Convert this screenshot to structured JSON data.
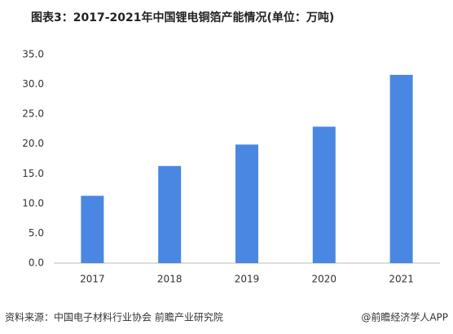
{
  "chart_data": {
    "type": "bar",
    "title": "图表3：2017-2021年中国锂电铜箔产能情况(单位：万吨)",
    "categories": [
      "2017",
      "2018",
      "2019",
      "2020",
      "2021"
    ],
    "values": [
      11.3,
      16.3,
      19.9,
      22.9,
      31.6
    ],
    "color": "#4a87e2",
    "ylim": [
      0,
      35
    ],
    "yticks": [
      {
        "value": 0,
        "label": "0.0"
      },
      {
        "value": 5,
        "label": "5.0"
      },
      {
        "value": 10,
        "label": "10.0"
      },
      {
        "value": 15,
        "label": "15.0"
      },
      {
        "value": 20,
        "label": "20.0"
      },
      {
        "value": 25,
        "label": "25.0"
      },
      {
        "value": 30,
        "label": "30.0"
      },
      {
        "value": 35,
        "label": "35.0"
      }
    ],
    "grid": false,
    "source": "资料来源：中国电子材料行业协会 前瞻产业研究院",
    "credit": "@前瞻经济学人APP"
  }
}
